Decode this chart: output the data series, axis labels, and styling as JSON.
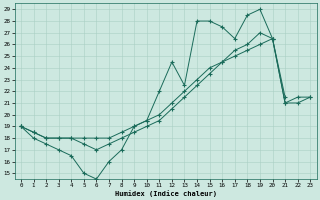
{
  "xlabel": "Humidex (Indice chaleur)",
  "xlim": [
    -0.5,
    23.5
  ],
  "ylim": [
    14.5,
    29.5
  ],
  "xticks": [
    0,
    1,
    2,
    3,
    4,
    5,
    6,
    7,
    8,
    9,
    10,
    11,
    12,
    13,
    14,
    15,
    16,
    17,
    18,
    19,
    20,
    21,
    22,
    23
  ],
  "yticks": [
    15,
    16,
    17,
    18,
    19,
    20,
    21,
    22,
    23,
    24,
    25,
    26,
    27,
    28,
    29
  ],
  "bg_color": "#cde8e0",
  "line_color": "#1a6b5a",
  "grid_color": "#aacfc5",
  "s1_x": [
    0,
    1,
    2,
    3,
    4,
    5,
    6,
    7,
    8,
    9,
    10,
    11,
    12,
    13,
    14,
    15,
    16,
    17,
    18,
    19,
    20,
    21
  ],
  "s1_y": [
    19,
    18,
    17.5,
    17,
    16.5,
    15,
    14.5,
    16,
    17,
    19,
    19.5,
    22,
    24.5,
    22.5,
    28,
    28,
    27.5,
    26.5,
    28.5,
    29,
    26.5,
    21.5
  ],
  "s2_x": [
    0,
    1,
    2,
    3,
    4,
    5,
    6,
    7,
    8,
    9,
    10,
    11,
    12,
    13,
    14,
    15,
    16,
    17,
    18,
    19,
    20,
    21,
    22,
    23
  ],
  "s2_y": [
    19,
    18.5,
    18,
    18,
    18,
    18,
    18,
    18,
    18.5,
    19,
    19.5,
    20,
    21,
    22,
    23,
    24,
    24.5,
    25,
    25.5,
    26,
    26.5,
    21,
    21,
    21.5
  ],
  "s3_x": [
    0,
    1,
    2,
    3,
    4,
    5,
    6,
    7,
    8,
    9,
    10,
    11,
    12,
    13,
    14,
    15,
    16,
    17,
    18,
    19,
    20,
    21,
    22,
    23
  ],
  "s3_y": [
    19,
    18.5,
    18,
    18,
    18,
    17.5,
    17,
    17.5,
    18,
    18.5,
    19,
    19.5,
    20.5,
    21.5,
    22.5,
    23.5,
    24.5,
    25.5,
    26,
    27,
    26.5,
    21,
    21.5,
    21.5
  ]
}
